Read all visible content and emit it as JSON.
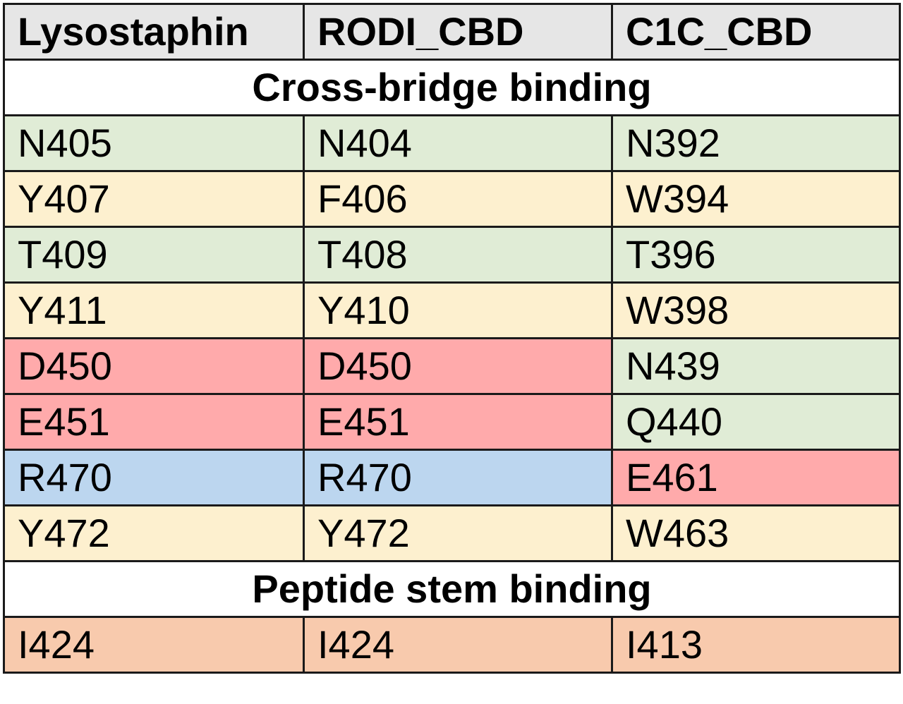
{
  "headers": [
    "Lysostaphin",
    "RODI_CBD",
    "C1C_CBD"
  ],
  "sections": [
    {
      "title": "Cross-bridge binding",
      "rows": [
        {
          "cells": [
            "N405",
            "N404",
            "N392"
          ],
          "colors": [
            "green",
            "green",
            "green"
          ]
        },
        {
          "cells": [
            "Y407",
            "F406",
            "W394"
          ],
          "colors": [
            "yellow",
            "yellow",
            "yellow"
          ]
        },
        {
          "cells": [
            "T409",
            "T408",
            "T396"
          ],
          "colors": [
            "green",
            "green",
            "green"
          ]
        },
        {
          "cells": [
            "Y411",
            "Y410",
            "W398"
          ],
          "colors": [
            "yellow",
            "yellow",
            "yellow"
          ]
        },
        {
          "cells": [
            "D450",
            "D450",
            "N439"
          ],
          "colors": [
            "red",
            "red",
            "green"
          ]
        },
        {
          "cells": [
            "E451",
            "E451",
            "Q440"
          ],
          "colors": [
            "red",
            "red",
            "green"
          ]
        },
        {
          "cells": [
            "R470",
            "R470",
            "E461"
          ],
          "colors": [
            "blue",
            "blue",
            "red"
          ]
        },
        {
          "cells": [
            "Y472",
            "Y472",
            "W463"
          ],
          "colors": [
            "yellow",
            "yellow",
            "yellow"
          ]
        }
      ]
    },
    {
      "title": "Peptide stem binding",
      "rows": [
        {
          "cells": [
            "I424",
            "I424",
            "I413"
          ],
          "colors": [
            "orange",
            "orange",
            "orange"
          ]
        }
      ]
    }
  ],
  "palette": {
    "green": "#e0ecd6",
    "yellow": "#fdf0cf",
    "red": "#ffaaab",
    "blue": "#bcd6ef",
    "orange": "#f8caad",
    "header": "#e6e6e6"
  }
}
